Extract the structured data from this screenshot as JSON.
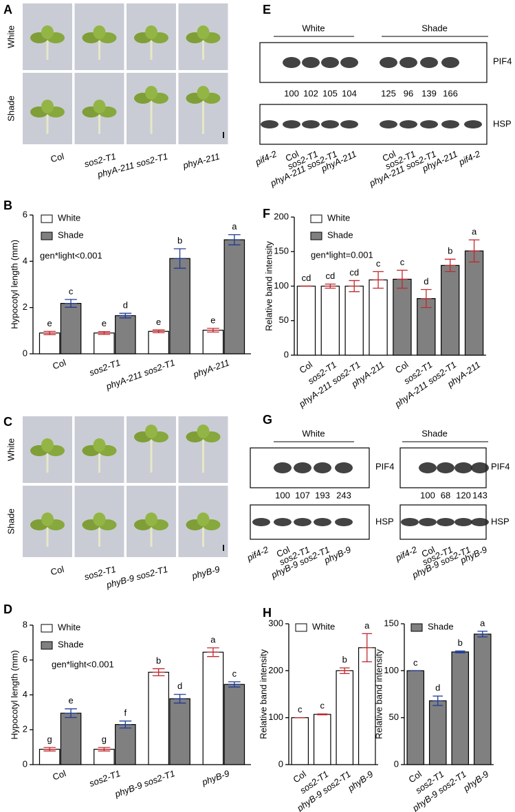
{
  "photos": [
    {
      "panel": "A",
      "rows": [
        "White",
        "Shade"
      ],
      "columns": [
        "Col",
        "sos2-T1",
        "phyA-211 sos2-T1",
        "phyA-211"
      ]
    },
    {
      "panel": "C",
      "rows": [
        "White",
        "Shade"
      ],
      "columns": [
        "Col",
        "sos2-T1",
        "phyB-9 sos2-T1",
        "phyB-9"
      ]
    }
  ],
  "blots": [
    {
      "panel": "E",
      "conditions": [
        "White",
        "Shade"
      ],
      "bands": [
        "PIF4",
        "HSP"
      ],
      "quantities": [
        100,
        102,
        105,
        104,
        125,
        96,
        139,
        166
      ],
      "lanes": [
        "pif4-2",
        "Col",
        "sos2-T1",
        "phyA-211 sos2-T1",
        "phyA-211",
        "Col",
        "sos2-T1",
        "phyA-211 sos2-T1",
        "phyA-211",
        "pif4-2"
      ]
    },
    {
      "panel": "G",
      "groups": [
        {
          "condition": "White",
          "bands": [
            "PIF4",
            "HSP"
          ],
          "quantities": [
            100,
            107,
            193,
            243
          ],
          "lanes": [
            "pif4-2",
            "Col",
            "sos2-T1",
            "phyB-9 sos2-T1",
            "phyB-9"
          ]
        },
        {
          "condition": "Shade",
          "bands": [
            "PIF4",
            "HSP"
          ],
          "quantities": [
            100,
            68,
            120,
            143
          ],
          "lanes": [
            "pif4-2",
            "Col",
            "sos2-T1",
            "phyB-9 sos2-T1",
            "phyB-9"
          ]
        }
      ]
    }
  ],
  "chart_data": [
    {
      "type": "bar",
      "panel": "B",
      "y_label": "Hypocotyl length (mm)",
      "annotation": "gen*light<0.001",
      "categories": [
        "Col",
        "sos2-T1",
        "phyA-211 sos2-T1",
        "phyA-211"
      ],
      "series": [
        {
          "name": "White",
          "color": "#ffffff",
          "error_color": "#c0282d",
          "values": [
            0.9,
            0.9,
            0.97,
            1.02
          ],
          "errors": [
            0.07,
            0.06,
            0.06,
            0.08
          ],
          "letters": [
            "e",
            "e",
            "e",
            "e"
          ]
        },
        {
          "name": "Shade",
          "color": "#808080",
          "error_color": "#1f3a93",
          "values": [
            2.18,
            1.65,
            4.12,
            4.93
          ],
          "errors": [
            0.17,
            0.1,
            0.42,
            0.22
          ],
          "letters": [
            "c",
            "d",
            "b",
            "a"
          ]
        }
      ],
      "ylim": [
        0,
        6
      ],
      "yticks": [
        0,
        2,
        4,
        6
      ],
      "legend": "upper left"
    },
    {
      "type": "bar",
      "panel": "D",
      "y_label": "Hypocotyl length (mm)",
      "annotation": "gen*light<0.001",
      "categories": [
        "Col",
        "sos2-T1",
        "phyB-9 sos2-T1",
        "phyB-9"
      ],
      "series": [
        {
          "name": "White",
          "color": "#ffffff",
          "error_color": "#c0282d",
          "values": [
            0.88,
            0.88,
            5.3,
            6.45
          ],
          "errors": [
            0.1,
            0.1,
            0.2,
            0.25
          ],
          "letters": [
            "g",
            "g",
            "b",
            "a"
          ]
        },
        {
          "name": "Shade",
          "color": "#808080",
          "error_color": "#1f3a93",
          "values": [
            2.95,
            2.3,
            3.78,
            4.6
          ],
          "errors": [
            0.25,
            0.2,
            0.25,
            0.15
          ],
          "letters": [
            "e",
            "f",
            "d",
            "c"
          ]
        }
      ],
      "ylim": [
        0,
        8
      ],
      "yticks": [
        0,
        2,
        4,
        6,
        8
      ],
      "legend": "upper left"
    },
    {
      "type": "bar",
      "panel": "F",
      "y_label": "Relative band intensity",
      "annotation": "gen*light=0.001",
      "categories": [
        "Col",
        "sos2-T1",
        "phyA-211 sos2-T1",
        "phyA-211",
        "Col",
        "sos2-T1",
        "phyA-211 sos2-T1",
        "phyA-211"
      ],
      "series": [
        {
          "name": "White",
          "color": "#ffffff",
          "error_color": "#c0282d",
          "values": [
            100,
            100,
            100,
            109,
            null,
            null,
            null,
            null
          ],
          "errors": [
            0,
            3,
            8,
            12,
            null,
            null,
            null,
            null
          ],
          "letters": [
            "cd",
            "cd",
            "cd",
            "c",
            null,
            null,
            null,
            null
          ]
        },
        {
          "name": "Shade",
          "color": "#808080",
          "error_color": "#c0282d",
          "values": [
            null,
            null,
            null,
            null,
            110,
            82,
            130,
            151
          ],
          "errors": [
            null,
            null,
            null,
            null,
            13,
            13,
            9,
            16
          ],
          "letters": [
            null,
            null,
            null,
            null,
            "c",
            "d",
            "b",
            "a"
          ]
        }
      ],
      "ylim": [
        0,
        200
      ],
      "yticks": [
        0,
        50,
        100,
        150,
        200
      ],
      "legend": "upper left"
    },
    {
      "type": "bar",
      "panel": "H",
      "y_label": "Relative band intensity",
      "categories": [
        "Col",
        "sos2-T1",
        "phyB-9 sos2-T1",
        "phyB-9"
      ],
      "series": [
        {
          "name": "White",
          "color": "#ffffff",
          "error_color": "#c0282d",
          "values": [
            100,
            107,
            200,
            249
          ],
          "errors": [
            0,
            1,
            6,
            30
          ],
          "letters": [
            "c",
            "c",
            "b",
            "a"
          ]
        }
      ],
      "ylim": [
        0,
        300
      ],
      "yticks": [
        0,
        100,
        200,
        300
      ],
      "legend": "upper left"
    },
    {
      "type": "bar",
      "y_label": "Relative band intensity",
      "categories": [
        "Col",
        "sos2-T1",
        "phyB-9 sos2-T1",
        "phyB-9"
      ],
      "series": [
        {
          "name": "Shade",
          "color": "#808080",
          "error_color": "#1f3a93",
          "values": [
            100,
            68,
            120,
            139
          ],
          "errors": [
            0,
            5,
            1,
            3
          ],
          "letters": [
            "c",
            "d",
            "b",
            "a"
          ]
        }
      ],
      "ylim": [
        0,
        150
      ],
      "yticks": [
        0,
        50,
        100,
        150
      ],
      "legend": "upper left"
    }
  ]
}
